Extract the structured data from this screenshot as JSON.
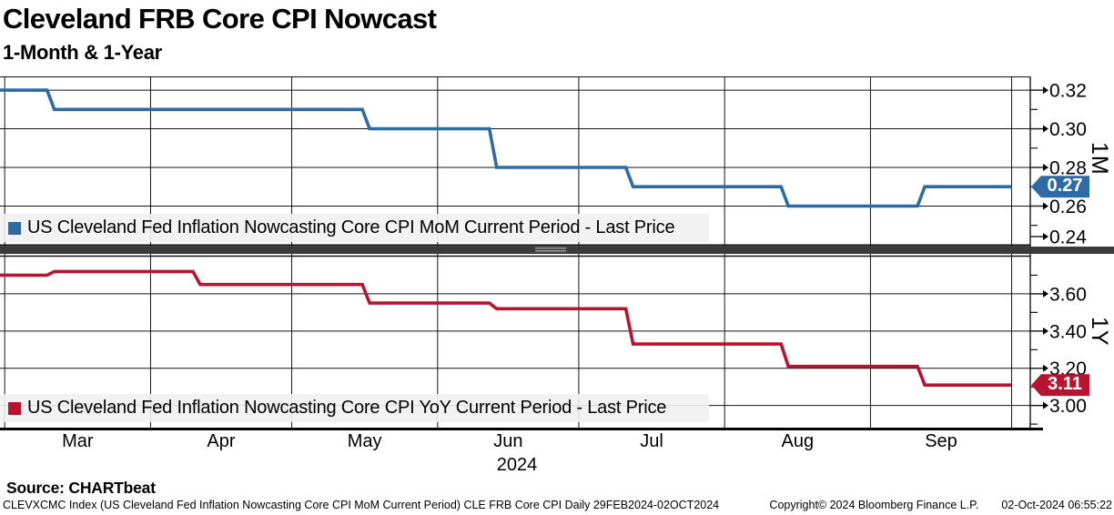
{
  "header": {
    "title": "Cleveland FRB Core CPI Nowcast",
    "subtitle": "1-Month & 1-Year"
  },
  "x_axis": {
    "year": "2024",
    "range": [
      "2024-02-29",
      "2024-10-01"
    ],
    "boundaries": [
      "2024-03-01",
      "2024-04-01",
      "2024-05-01",
      "2024-06-01",
      "2024-07-01",
      "2024-08-01",
      "2024-09-01",
      "2024-10-01"
    ],
    "month_labels": [
      "Mar",
      "Apr",
      "May",
      "Jun",
      "Jul",
      "Aug",
      "Sep"
    ]
  },
  "chart_data": [
    {
      "type": "line",
      "panel": "top",
      "axis_label": "1M",
      "legend": "US Cleveland Fed Inflation Nowcasting Core CPI MoM Current Period - Last Price",
      "color": "#2e6ba6",
      "last_price": "0.27",
      "ylim": [
        0.2395,
        0.3271
      ],
      "y_ticks": [
        "0.32",
        "0.30",
        "0.28",
        "0.26",
        "0.24"
      ],
      "y_minor_ticks": [
        0.31,
        0.29,
        0.27,
        0.25
      ],
      "steps": [
        [
          "2024-02-29",
          0.32
        ],
        [
          "2024-03-10",
          0.31
        ],
        [
          "2024-05-16",
          0.3
        ],
        [
          "2024-06-12",
          0.28
        ],
        [
          "2024-07-11",
          0.27
        ],
        [
          "2024-08-13",
          0.26
        ],
        [
          "2024-09-11",
          0.27
        ]
      ],
      "end_date": "2024-10-01"
    },
    {
      "type": "line",
      "panel": "bottom",
      "axis_label": "1Y",
      "legend": "US Cleveland Fed Inflation Nowcasting Core CPI YoY Current Period - Last Price",
      "color": "#b81431",
      "last_price": "3.11",
      "ylim": [
        2.881,
        3.8
      ],
      "y_ticks": [
        "3.60",
        "3.40",
        "3.20",
        "3.00"
      ],
      "y_minor_ticks": [
        3.7,
        3.5,
        3.3,
        3.1,
        2.9
      ],
      "steps": [
        [
          "2024-02-29",
          3.7
        ],
        [
          "2024-03-10",
          3.72
        ],
        [
          "2024-04-10",
          3.65
        ],
        [
          "2024-05-16",
          3.55
        ],
        [
          "2024-06-12",
          3.52
        ],
        [
          "2024-07-11",
          3.33
        ],
        [
          "2024-08-13",
          3.21
        ],
        [
          "2024-09-11",
          3.11
        ]
      ],
      "end_date": "2024-10-01"
    }
  ],
  "footer": {
    "source": "Source: CHARTbeat",
    "description": "CLEVXCMC Index (US Cleveland Fed Inflation Nowcasting Core CPI MoM Current Period) CLE FRB Core CPI  Daily 29FEB2024-02OCT2024",
    "copyright": "Copyright© 2024 Bloomberg Finance L.P.",
    "timestamp": "02-Oct-2024 06:55:22"
  }
}
